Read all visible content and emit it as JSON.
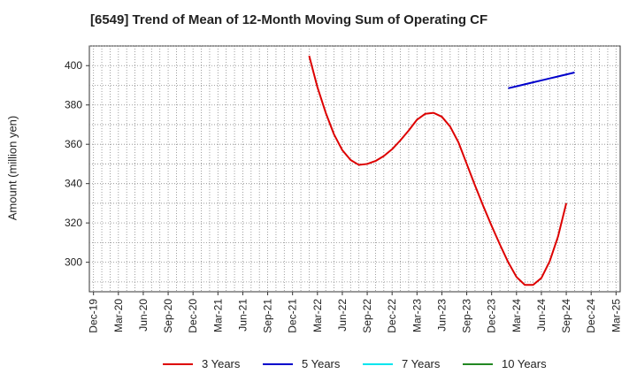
{
  "chart_data": {
    "type": "line",
    "title": "[6549]  Trend of Mean of 12-Month Moving Sum of Operating CF",
    "xlabel": "",
    "ylabel": "Amount (million yen)",
    "ylim": [
      285,
      410
    ],
    "yticks": [
      300,
      320,
      340,
      360,
      380,
      400
    ],
    "grid": true,
    "legend_position": "bottom",
    "x_ticks": [
      "Dec-19",
      "Mar-20",
      "Jun-20",
      "Sep-20",
      "Dec-20",
      "Mar-21",
      "Jun-21",
      "Sep-21",
      "Dec-21",
      "Mar-22",
      "Jun-22",
      "Sep-22",
      "Dec-22",
      "Mar-23",
      "Jun-23",
      "Sep-23",
      "Dec-23",
      "Mar-24",
      "Jun-24",
      "Sep-24",
      "Dec-24",
      "Mar-25"
    ],
    "x_months": [
      "Dec-19",
      "Jan-20",
      "Feb-20",
      "Mar-20",
      "Apr-20",
      "May-20",
      "Jun-20",
      "Jul-20",
      "Aug-20",
      "Sep-20",
      "Oct-20",
      "Nov-20",
      "Dec-20",
      "Jan-21",
      "Feb-21",
      "Mar-21",
      "Apr-21",
      "May-21",
      "Jun-21",
      "Jul-21",
      "Aug-21",
      "Sep-21",
      "Oct-21",
      "Nov-21",
      "Dec-21",
      "Jan-22",
      "Feb-22",
      "Mar-22",
      "Apr-22",
      "May-22",
      "Jun-22",
      "Jul-22",
      "Aug-22",
      "Sep-22",
      "Oct-22",
      "Nov-22",
      "Dec-22",
      "Jan-23",
      "Feb-23",
      "Mar-23",
      "Apr-23",
      "May-23",
      "Jun-23",
      "Jul-23",
      "Aug-23",
      "Sep-23",
      "Oct-23",
      "Nov-23",
      "Dec-23",
      "Jan-24",
      "Feb-24",
      "Mar-24",
      "Apr-24",
      "May-24",
      "Jun-24",
      "Jul-24",
      "Aug-24",
      "Sep-24",
      "Oct-24",
      "Nov-24",
      "Dec-24",
      "Jan-25",
      "Feb-25",
      "Mar-25"
    ],
    "series": [
      {
        "name": "3 Years",
        "color": "#dd0000",
        "start_month": "Feb-22",
        "values": [
          405,
          389,
          376,
          365,
          357,
          352,
          349.5,
          350,
          351.5,
          354,
          357.5,
          362,
          367,
          372.5,
          375.5,
          376,
          374,
          369,
          361,
          350,
          339,
          328.5,
          318.5,
          309,
          300,
          292.5,
          288.5,
          288.5,
          292,
          300.5,
          313,
          330
        ]
      },
      {
        "name": "5 Years",
        "color": "#0000cc",
        "start_month": "Feb-24",
        "values": [
          388.5,
          389.5,
          390.5,
          391.5,
          392.5,
          393.5,
          394.5,
          395.5,
          396.5
        ]
      },
      {
        "name": "7 Years",
        "color": "#00e5ee",
        "start_month": null,
        "values": []
      },
      {
        "name": "10 Years",
        "color": "#228822",
        "start_month": null,
        "values": []
      }
    ]
  }
}
